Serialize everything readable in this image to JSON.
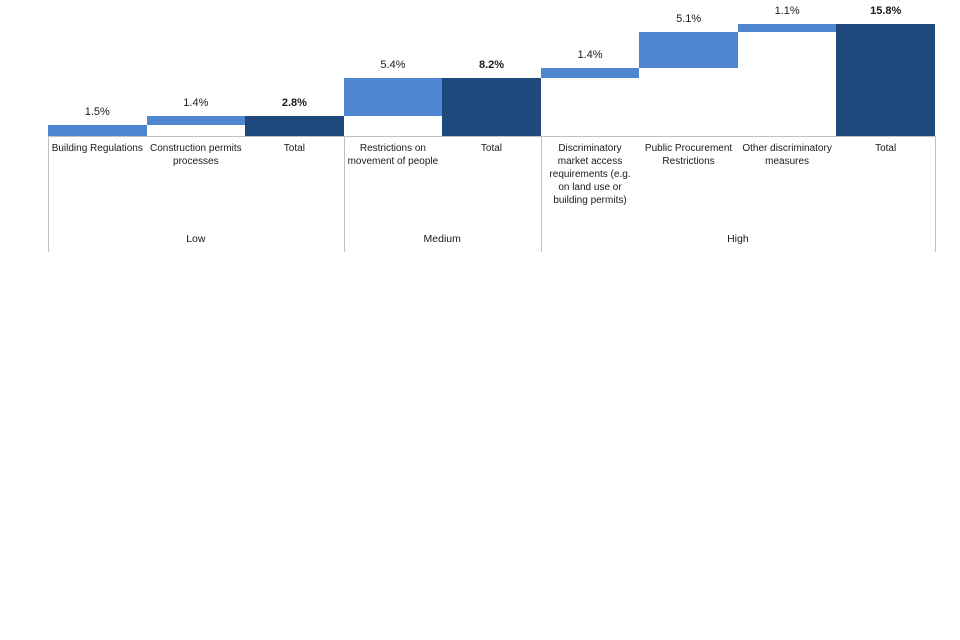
{
  "chart_data": {
    "type": "bar",
    "subtype": "waterfall",
    "unit": "%",
    "title": "",
    "xlabel": "",
    "ylabel": "",
    "ylim": [
      0,
      15.9
    ],
    "grid": false,
    "legend": "none",
    "colors": {
      "segment": "#4F86D0",
      "total": "#1F497D",
      "axis_line": "#C0C0C0",
      "text": "#1a1a1a"
    },
    "bars": [
      {
        "category": "Building Regulations",
        "label": "1.5%",
        "value": 1.5,
        "start": 0,
        "end": 1.5,
        "role": "segment"
      },
      {
        "category": "Construction permits processes",
        "label": "1.4%",
        "value": 1.4,
        "start": 1.5,
        "end": 2.8,
        "role": "segment"
      },
      {
        "category": "Total",
        "label": "2.8%",
        "value": 2.8,
        "start": 0,
        "end": 2.8,
        "role": "total"
      },
      {
        "category": "Restrictions on movement of people",
        "label": "5.4%",
        "value": 5.4,
        "start": 2.8,
        "end": 8.2,
        "role": "segment"
      },
      {
        "category": "Total",
        "label": "8.2%",
        "value": 8.2,
        "start": 0,
        "end": 8.2,
        "role": "total"
      },
      {
        "category": "Discriminatory market access requirements (e.g. on land use or building permits)",
        "label": "1.4%",
        "value": 1.4,
        "start": 8.2,
        "end": 9.6,
        "role": "segment"
      },
      {
        "category": "Public Procurement Restrictions",
        "label": "5.1%",
        "value": 5.1,
        "start": 9.6,
        "end": 14.7,
        "role": "segment"
      },
      {
        "category": "Other discriminatory measures",
        "label": "1.1%",
        "value": 1.1,
        "start": 14.7,
        "end": 15.8,
        "role": "segment"
      },
      {
        "category": "Total",
        "label": "15.8%",
        "value": 15.8,
        "start": 0,
        "end": 15.8,
        "role": "total"
      }
    ],
    "groups": [
      {
        "label": "Low",
        "columns": 3
      },
      {
        "label": "Medium",
        "columns": 2
      },
      {
        "label": "High",
        "columns": 4
      }
    ]
  }
}
